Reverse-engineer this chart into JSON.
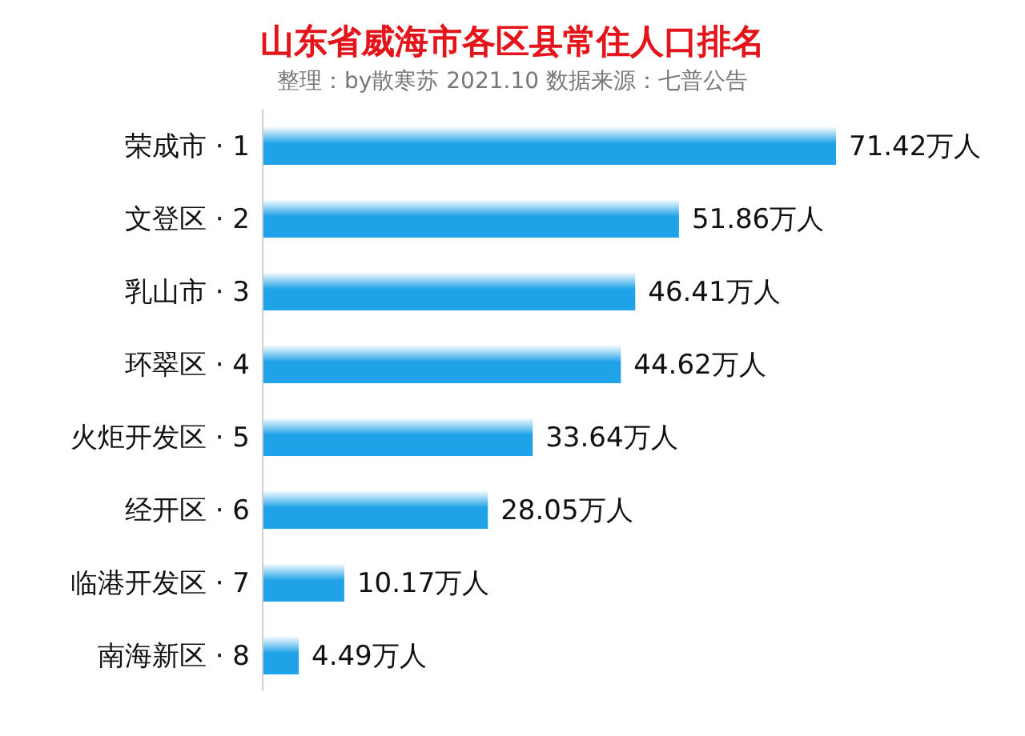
{
  "chart_data": {
    "type": "bar",
    "orientation": "horizontal",
    "title": "山东省威海市各区县常住人口排名",
    "subtitle": "整理：by散寒苏 2021.10 数据来源：七普公告",
    "categories": [
      "荣成市 · 1",
      "文登区 · 2",
      "乳山市 · 3",
      "环翠区 · 4",
      "火炬开发区 · 5",
      "经开区 · 6",
      "临港开发区 · 7",
      "南海新区 · 8"
    ],
    "values": [
      71.42,
      51.86,
      46.41,
      44.62,
      33.64,
      28.05,
      10.17,
      4.49
    ],
    "value_labels": [
      "71.42万人",
      "51.86万人",
      "46.41万人",
      "44.62万人",
      "33.64万人",
      "28.05万人",
      "10.17万人",
      "4.49万人"
    ],
    "color": "#1fa2e8",
    "grid": false,
    "legend": false
  }
}
